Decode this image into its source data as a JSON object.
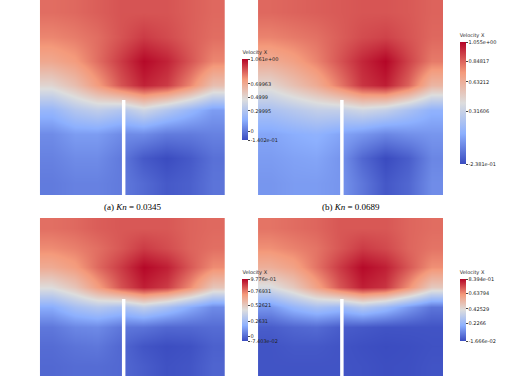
{
  "chart_data": [
    {
      "type": "heatmap",
      "title": "(a) Kn = 0.0345",
      "colorbar_title": "Velocity X",
      "tick_labels": false,
      "colorbar_range": [
        -0.1402,
        1.061
      ],
      "colorbar_ticks": [
        {
          "value": -0.1402,
          "label": "-1.402e-01"
        },
        0,
        0.29995,
        0.4999,
        0.69963,
        {
          "value": 1.061,
          "label": "1.061e+00"
        }
      ],
      "cells": [
        [
          0.0,
          0.02,
          0.02,
          0.0,
          -0.05,
          -0.1,
          -0.08,
          -0.02
        ],
        [
          0.02,
          0.05,
          0.05,
          0.0,
          -0.1,
          -0.14,
          -0.1,
          -0.03
        ],
        [
          0.05,
          0.1,
          0.1,
          0.05,
          0.05,
          0.0,
          0.0,
          0.02
        ],
        [
          0.2,
          0.3,
          0.35,
          0.3,
          0.4,
          0.3,
          0.2,
          0.1
        ],
        [
          0.5,
          0.6,
          0.75,
          0.9,
          1.0,
          0.95,
          0.8,
          0.6
        ],
        [
          0.7,
          0.75,
          0.85,
          0.95,
          1.05,
          1.0,
          0.9,
          0.8
        ],
        [
          0.8,
          0.82,
          0.85,
          0.9,
          0.95,
          0.92,
          0.88,
          0.85
        ],
        [
          0.85,
          0.86,
          0.88,
          0.9,
          0.9,
          0.9,
          0.88,
          0.86
        ]
      ]
    },
    {
      "type": "heatmap",
      "title": "(b) Kn = 0.0689",
      "colorbar_title": "Velocity X",
      "tick_labels": false,
      "colorbar_range": [
        -0.2381,
        1.055
      ],
      "colorbar_ticks": [
        {
          "value": -0.2381,
          "label": "-2.381e-01"
        },
        0.31606,
        0.63212,
        0.84817,
        {
          "value": 1.055,
          "label": "1.055e+00"
        }
      ],
      "cells": [
        [
          0.0,
          0.02,
          0.02,
          0.0,
          -0.1,
          -0.2,
          -0.15,
          -0.03
        ],
        [
          0.02,
          0.04,
          0.05,
          0.0,
          -0.15,
          -0.24,
          -0.18,
          -0.05
        ],
        [
          0.05,
          0.08,
          0.1,
          0.05,
          0.0,
          -0.05,
          -0.02,
          0.0
        ],
        [
          0.2,
          0.25,
          0.3,
          0.3,
          0.35,
          0.3,
          0.2,
          0.1
        ],
        [
          0.45,
          0.55,
          0.65,
          0.8,
          0.95,
          1.0,
          0.85,
          0.6
        ],
        [
          0.65,
          0.7,
          0.78,
          0.88,
          0.98,
          1.05,
          0.92,
          0.8
        ],
        [
          0.78,
          0.8,
          0.82,
          0.86,
          0.9,
          0.92,
          0.88,
          0.84
        ],
        [
          0.84,
          0.85,
          0.86,
          0.87,
          0.88,
          0.88,
          0.87,
          0.85
        ]
      ]
    },
    {
      "type": "heatmap",
      "colorbar_title": "Velocity X",
      "tick_labels": false,
      "colorbar_range": [
        -0.07403,
        0.9776
      ],
      "colorbar_ticks": [
        {
          "value": -0.07403,
          "label": "-7.403e-02"
        },
        0,
        0.2631,
        0.52621,
        0.76931,
        {
          "value": 0.9776,
          "label": "9.776e-01"
        }
      ],
      "cells": [
        [
          0.0,
          0.01,
          0.01,
          0.0,
          -0.03,
          -0.06,
          -0.05,
          -0.01
        ],
        [
          0.01,
          0.03,
          0.04,
          0.0,
          -0.05,
          -0.07,
          -0.06,
          -0.02
        ],
        [
          0.04,
          0.08,
          0.09,
          0.04,
          0.03,
          0.0,
          0.0,
          0.01
        ],
        [
          0.18,
          0.27,
          0.32,
          0.28,
          0.36,
          0.28,
          0.18,
          0.09
        ],
        [
          0.46,
          0.55,
          0.7,
          0.84,
          0.93,
          0.88,
          0.74,
          0.55
        ],
        [
          0.65,
          0.7,
          0.8,
          0.88,
          0.97,
          0.93,
          0.83,
          0.74
        ],
        [
          0.74,
          0.76,
          0.79,
          0.83,
          0.88,
          0.85,
          0.81,
          0.79
        ],
        [
          0.79,
          0.8,
          0.82,
          0.83,
          0.83,
          0.83,
          0.81,
          0.8
        ]
      ]
    },
    {
      "type": "heatmap",
      "colorbar_title": "Velocity X",
      "tick_labels": false,
      "colorbar_range": [
        -0.01666,
        0.8394
      ],
      "colorbar_ticks": [
        {
          "value": -0.01666,
          "label": "-1.666e-02"
        },
        0.2266,
        0.42529,
        0.63794,
        {
          "value": 0.8394,
          "label": "8.394e-01"
        }
      ],
      "cells": [
        [
          0.0,
          0.0,
          0.0,
          0.0,
          -0.005,
          -0.012,
          -0.01,
          0.0
        ],
        [
          0.0,
          0.01,
          0.01,
          0.0,
          -0.01,
          -0.016,
          -0.012,
          -0.005
        ],
        [
          0.02,
          0.04,
          0.05,
          0.02,
          0.01,
          0.0,
          0.0,
          0.0
        ],
        [
          0.14,
          0.22,
          0.27,
          0.24,
          0.3,
          0.24,
          0.15,
          0.07
        ],
        [
          0.4,
          0.48,
          0.6,
          0.72,
          0.8,
          0.77,
          0.64,
          0.48
        ],
        [
          0.56,
          0.6,
          0.68,
          0.76,
          0.83,
          0.8,
          0.72,
          0.64
        ],
        [
          0.64,
          0.66,
          0.68,
          0.72,
          0.76,
          0.74,
          0.7,
          0.68
        ],
        [
          0.68,
          0.69,
          0.7,
          0.72,
          0.72,
          0.72,
          0.7,
          0.69
        ]
      ]
    }
  ]
}
